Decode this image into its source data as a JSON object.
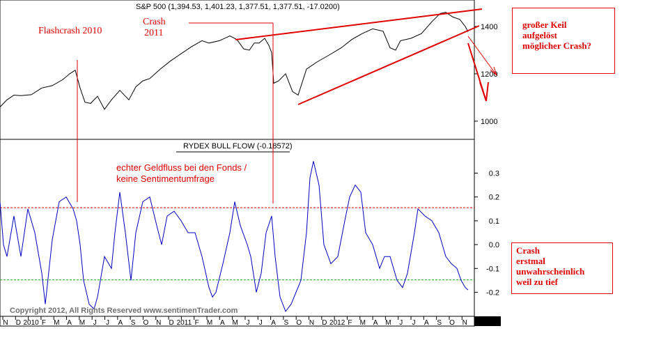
{
  "chart_data": [
    {
      "type": "line",
      "title": "S&P 500 (1,394.53, 1,401.23, 1,377.51, 1,377.51, -17.0200)",
      "yticks": [
        1000,
        1200,
        1400
      ],
      "ylim": [
        935,
        1500
      ],
      "series": [
        {
          "color": "#000000",
          "x": [
            0,
            10,
            20,
            30,
            45,
            60,
            75,
            90,
            100,
            108,
            115,
            122,
            130,
            140,
            150,
            160,
            172,
            185,
            195,
            205,
            215,
            230,
            245,
            260,
            275,
            290,
            300,
            315,
            330,
            340,
            350,
            358,
            365,
            372,
            380,
            386,
            390,
            393,
            400,
            410,
            420,
            428,
            440,
            455,
            470,
            490,
            505,
            520,
            535,
            550,
            560,
            568,
            575,
            590,
            605,
            620,
            632,
            640,
            650,
            660,
            668,
            672
          ],
          "values": [
            1060,
            1090,
            1110,
            1108,
            1112,
            1140,
            1150,
            1175,
            1200,
            1215,
            1140,
            1080,
            1075,
            1105,
            1050,
            1090,
            1130,
            1090,
            1145,
            1170,
            1180,
            1220,
            1255,
            1285,
            1315,
            1340,
            1330,
            1340,
            1360,
            1345,
            1305,
            1300,
            1330,
            1330,
            1350,
            1320,
            1290,
            1160,
            1170,
            1200,
            1125,
            1110,
            1220,
            1250,
            1275,
            1310,
            1345,
            1370,
            1390,
            1380,
            1310,
            1300,
            1340,
            1350,
            1370,
            1420,
            1455,
            1460,
            1440,
            1430,
            1400,
            1377.51
          ]
        }
      ]
    },
    {
      "type": "line",
      "title": "RYDEX BULL FLOW (-0.18572)",
      "yticks": [
        -0.2,
        -0.1,
        0.0,
        0.1,
        0.2,
        0.3
      ],
      "ylim": [
        -0.295,
        0.43
      ],
      "reference_lines": [
        {
          "value": 0.155,
          "color": "#e00000"
        },
        {
          "value": -0.148,
          "color": "#20a020"
        }
      ],
      "series": [
        {
          "color": "#0000c0",
          "x": [
            0,
            5,
            10,
            20,
            30,
            40,
            50,
            60,
            65,
            75,
            85,
            95,
            105,
            110,
            115,
            120,
            128,
            135,
            140,
            150,
            160,
            165,
            172,
            180,
            188,
            195,
            205,
            215,
            225,
            232,
            240,
            250,
            260,
            270,
            280,
            290,
            300,
            305,
            310,
            320,
            330,
            337,
            345,
            355,
            360,
            368,
            375,
            382,
            390,
            395,
            402,
            410,
            418,
            425,
            432,
            440,
            445,
            450,
            458,
            465,
            475,
            485,
            495,
            502,
            510,
            518,
            525,
            535,
            545,
            552,
            560,
            570,
            578,
            585,
            595,
            600,
            610,
            620,
            630,
            640,
            648,
            656,
            662,
            668,
            672
          ],
          "values": [
            0.18,
            0.0,
            -0.05,
            0.12,
            -0.05,
            0.15,
            0.05,
            -0.12,
            -0.25,
            0.02,
            0.18,
            0.2,
            0.15,
            0.1,
            0.0,
            -0.15,
            -0.25,
            -0.27,
            -0.22,
            -0.05,
            -0.1,
            0.05,
            0.22,
            0.05,
            -0.15,
            0.05,
            0.18,
            0.2,
            0.08,
            0.0,
            0.12,
            0.14,
            0.1,
            0.05,
            0.05,
            -0.05,
            -0.18,
            -0.22,
            -0.2,
            -0.08,
            0.05,
            0.18,
            0.08,
            0.0,
            -0.05,
            -0.2,
            -0.12,
            0.05,
            0.12,
            -0.05,
            -0.22,
            -0.28,
            -0.25,
            -0.2,
            -0.15,
            0.05,
            0.28,
            0.35,
            0.25,
            0.0,
            -0.08,
            -0.05,
            0.1,
            0.2,
            0.25,
            0.22,
            0.05,
            0.0,
            -0.1,
            -0.05,
            -0.05,
            -0.15,
            -0.18,
            -0.12,
            0.05,
            0.15,
            0.12,
            0.1,
            0.05,
            -0.05,
            -0.08,
            -0.1,
            -0.15,
            -0.18,
            -0.19
          ]
        }
      ]
    }
  ],
  "xaxis": {
    "months": [
      "N",
      "D",
      "2010",
      "F",
      "M",
      "A",
      "M",
      "J",
      "J",
      "A",
      "S",
      "O",
      "N",
      "D",
      "2011",
      "F",
      "M",
      "A",
      "M",
      "J",
      "J",
      "A",
      "S",
      "O",
      "N",
      "D",
      "2012",
      "F",
      "M",
      "A",
      "M",
      "J",
      "J",
      "A",
      "S",
      "O",
      "N"
    ]
  },
  "copyright": "Copyright 2012, All Rights Reserved  www.sentimenTrader.com",
  "annotations": {
    "flashcrash": "Flashcrash 2010",
    "crash2011_line1": "Crash",
    "crash2011_line2": "2011",
    "geldfluss_line1": "echter Geldfluss bei den Fonds /",
    "geldfluss_line2": "keine Sentimentumfrage"
  },
  "note_top": {
    "line1": "großer Keil",
    "line2": "aufgelöst",
    "line3": "möglicher Crash?"
  },
  "note_bottom": {
    "line1": "Crash",
    "line2": "erstmal",
    "line3": "unwahrscheinlich",
    "line4": "weil zu tief"
  },
  "colors": {
    "price_line": "#000000",
    "flow_line": "#0000c0",
    "annotation": "#e00000",
    "upper_ref": "#e00000",
    "lower_ref": "#20a020"
  }
}
